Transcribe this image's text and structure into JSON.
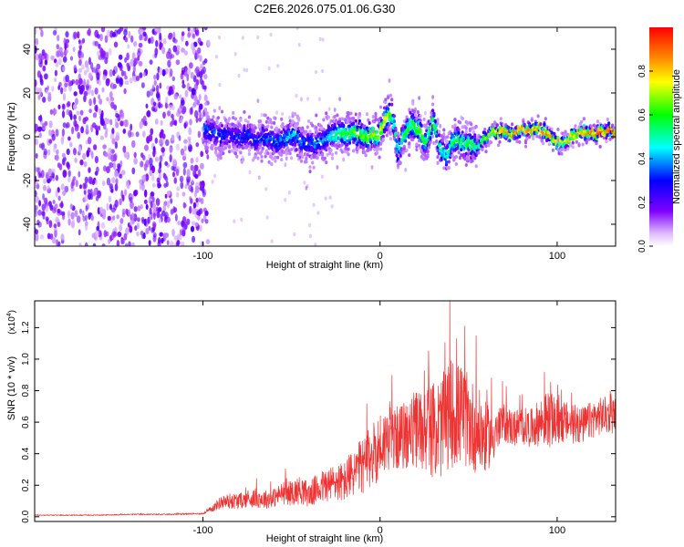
{
  "page": {
    "title": "C2E6.2026.075.01.06.G30"
  },
  "colors": {
    "snr_line": "#ee3333",
    "colormap_stops": [
      "#ffffff",
      "#7f00ff",
      "#0000ff",
      "#00ffff",
      "#00ff00",
      "#ffff00",
      "#ff7f00",
      "#ff0000"
    ]
  },
  "chart_data": [
    {
      "type": "heatmap",
      "title": "C2E6.2026.075.01.06.G30",
      "xlabel": "Height of straight line (km)",
      "ylabel": "Frequency (Hz)",
      "xlim": [
        -195,
        133
      ],
      "ylim": [
        -50,
        50
      ],
      "x_ticks": [
        -100,
        0,
        100
      ],
      "x_tick_labels": [
        "-100",
        "0",
        "100"
      ],
      "y_ticks": [
        -40,
        -20,
        0,
        20,
        40
      ],
      "y_tick_labels": [
        "-40",
        "-20",
        "0",
        "20",
        "40"
      ],
      "colorbar": {
        "label": "Normalized spectral amplitude",
        "range": [
          0,
          1
        ],
        "ticks": [
          0.0,
          0.2,
          0.4,
          0.6,
          0.8
        ],
        "tick_labels": [
          "0.0",
          "0.2",
          "0.4",
          "0.6",
          "0.8"
        ]
      },
      "noise_region_x": [
        -195,
        -97
      ],
      "ridge": {
        "x": [
          -100,
          -95,
          -90,
          -85,
          -80,
          -75,
          -70,
          -65,
          -60,
          -55,
          -50,
          -45,
          -40,
          -35,
          -30,
          -25,
          -20,
          -15,
          -10,
          -5,
          0,
          3,
          6,
          8,
          10,
          14,
          18,
          22,
          26,
          30,
          34,
          38,
          42,
          46,
          50,
          54,
          58,
          62,
          66,
          70,
          75,
          80,
          85,
          90,
          95,
          100,
          105,
          110,
          115,
          120,
          125,
          130,
          133
        ],
        "freq": [
          3,
          2,
          0,
          2,
          -1,
          1,
          -2,
          0,
          -3,
          -1,
          1,
          -2,
          -4,
          -3,
          -1,
          1,
          2,
          2,
          1,
          0,
          1,
          8,
          10,
          5,
          -8,
          2,
          6,
          3,
          -2,
          8,
          -6,
          -9,
          -1,
          -3,
          -2,
          -5,
          -2,
          2,
          2,
          3,
          1,
          4,
          2,
          4,
          1,
          -3,
          -2,
          1,
          2,
          2,
          2,
          2,
          2
        ],
        "amp": [
          0.35,
          0.3,
          0.3,
          0.25,
          0.3,
          0.3,
          0.3,
          0.3,
          0.35,
          0.35,
          0.4,
          0.35,
          0.3,
          0.35,
          0.4,
          0.5,
          0.55,
          0.6,
          0.6,
          0.65,
          0.7,
          0.7,
          0.6,
          0.5,
          0.45,
          0.55,
          0.55,
          0.6,
          0.55,
          0.6,
          0.5,
          0.45,
          0.55,
          0.55,
          0.55,
          0.5,
          0.55,
          0.75,
          0.8,
          0.85,
          0.85,
          0.85,
          0.85,
          0.85,
          0.85,
          0.75,
          0.75,
          0.8,
          0.85,
          0.9,
          0.9,
          0.9,
          0.9
        ]
      }
    },
    {
      "type": "line",
      "xlabel": "Height of straight line (km)",
      "ylabel": "SNR (10 * v/v)",
      "y_multiplier": "(x10",
      "y_multiplier_exp": "4",
      "y_multiplier_close": ")",
      "xlim": [
        -195,
        133
      ],
      "ylim": [
        -0.03,
        1.37
      ],
      "x_ticks": [
        -100,
        0,
        100
      ],
      "x_tick_labels": [
        "-100",
        "0",
        "100"
      ],
      "y_ticks": [
        0.0,
        0.2,
        0.4,
        0.6,
        0.8,
        1.0,
        1.2
      ],
      "y_tick_labels": [
        "0.0",
        "0.2",
        "0.4",
        "0.6",
        "0.8",
        "1.0",
        "1.2"
      ],
      "series": [
        {
          "x": [
            -195,
            -180,
            -160,
            -140,
            -120,
            -100,
            -95,
            -90,
            -85,
            -80,
            -75,
            -70,
            -65,
            -60,
            -55,
            -50,
            -45,
            -40,
            -35,
            -30,
            -25,
            -20,
            -15,
            -10,
            -5,
            0,
            5,
            10,
            15,
            20,
            25,
            30,
            35,
            40,
            45,
            50,
            55,
            60,
            65,
            70,
            75,
            80,
            85,
            90,
            95,
            100,
            105,
            110,
            115,
            120,
            125,
            133
          ],
          "y": [
            0.01,
            0.01,
            0.01,
            0.015,
            0.015,
            0.02,
            0.05,
            0.09,
            0.1,
            0.1,
            0.11,
            0.12,
            0.11,
            0.12,
            0.15,
            0.15,
            0.17,
            0.14,
            0.18,
            0.2,
            0.22,
            0.22,
            0.28,
            0.32,
            0.38,
            0.45,
            0.5,
            0.5,
            0.52,
            0.55,
            0.56,
            0.55,
            0.57,
            0.66,
            0.65,
            0.6,
            0.55,
            0.5,
            0.52,
            0.6,
            0.56,
            0.58,
            0.56,
            0.6,
            0.62,
            0.6,
            0.6,
            0.58,
            0.58,
            0.62,
            0.64,
            0.65
          ],
          "spread": [
            0.003,
            0.003,
            0.003,
            0.004,
            0.004,
            0.005,
            0.02,
            0.04,
            0.05,
            0.05,
            0.05,
            0.06,
            0.06,
            0.06,
            0.07,
            0.08,
            0.09,
            0.08,
            0.1,
            0.11,
            0.12,
            0.13,
            0.15,
            0.18,
            0.2,
            0.22,
            0.2,
            0.2,
            0.22,
            0.25,
            0.28,
            0.3,
            0.33,
            0.35,
            0.33,
            0.3,
            0.28,
            0.22,
            0.15,
            0.12,
            0.12,
            0.12,
            0.12,
            0.15,
            0.18,
            0.15,
            0.13,
            0.12,
            0.12,
            0.12,
            0.12,
            0.12
          ]
        }
      ]
    }
  ]
}
